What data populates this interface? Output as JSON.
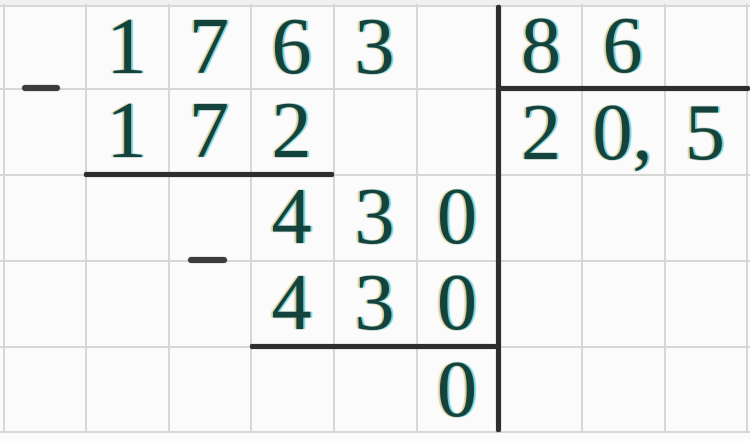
{
  "division": {
    "dividend": {
      "digits": [
        "1",
        "7",
        "6",
        "3"
      ]
    },
    "divisor": {
      "digits": [
        "8",
        "6"
      ]
    },
    "quotient": {
      "digits": [
        "2",
        "0,",
        "5"
      ]
    },
    "subtraction_step_1": {
      "digits": [
        "1",
        "7",
        "2"
      ]
    },
    "intermediate_remainder": {
      "digits": [
        "4",
        "3",
        "0"
      ]
    },
    "subtraction_step_2": {
      "digits": [
        "4",
        "3",
        "0"
      ]
    },
    "final_remainder": {
      "digits": [
        "0"
      ]
    }
  },
  "icons": {
    "minus": "−"
  },
  "colors": {
    "digit_ink": "#14423c",
    "digit_fringe_left": "#c5a026",
    "digit_fringe_right": "#00b6d0",
    "rule_ink": "#2e2e2e",
    "grid_line": "#d7d7d7",
    "paper": "#fbfbfb",
    "margin_strip": "#f0f0f0"
  }
}
